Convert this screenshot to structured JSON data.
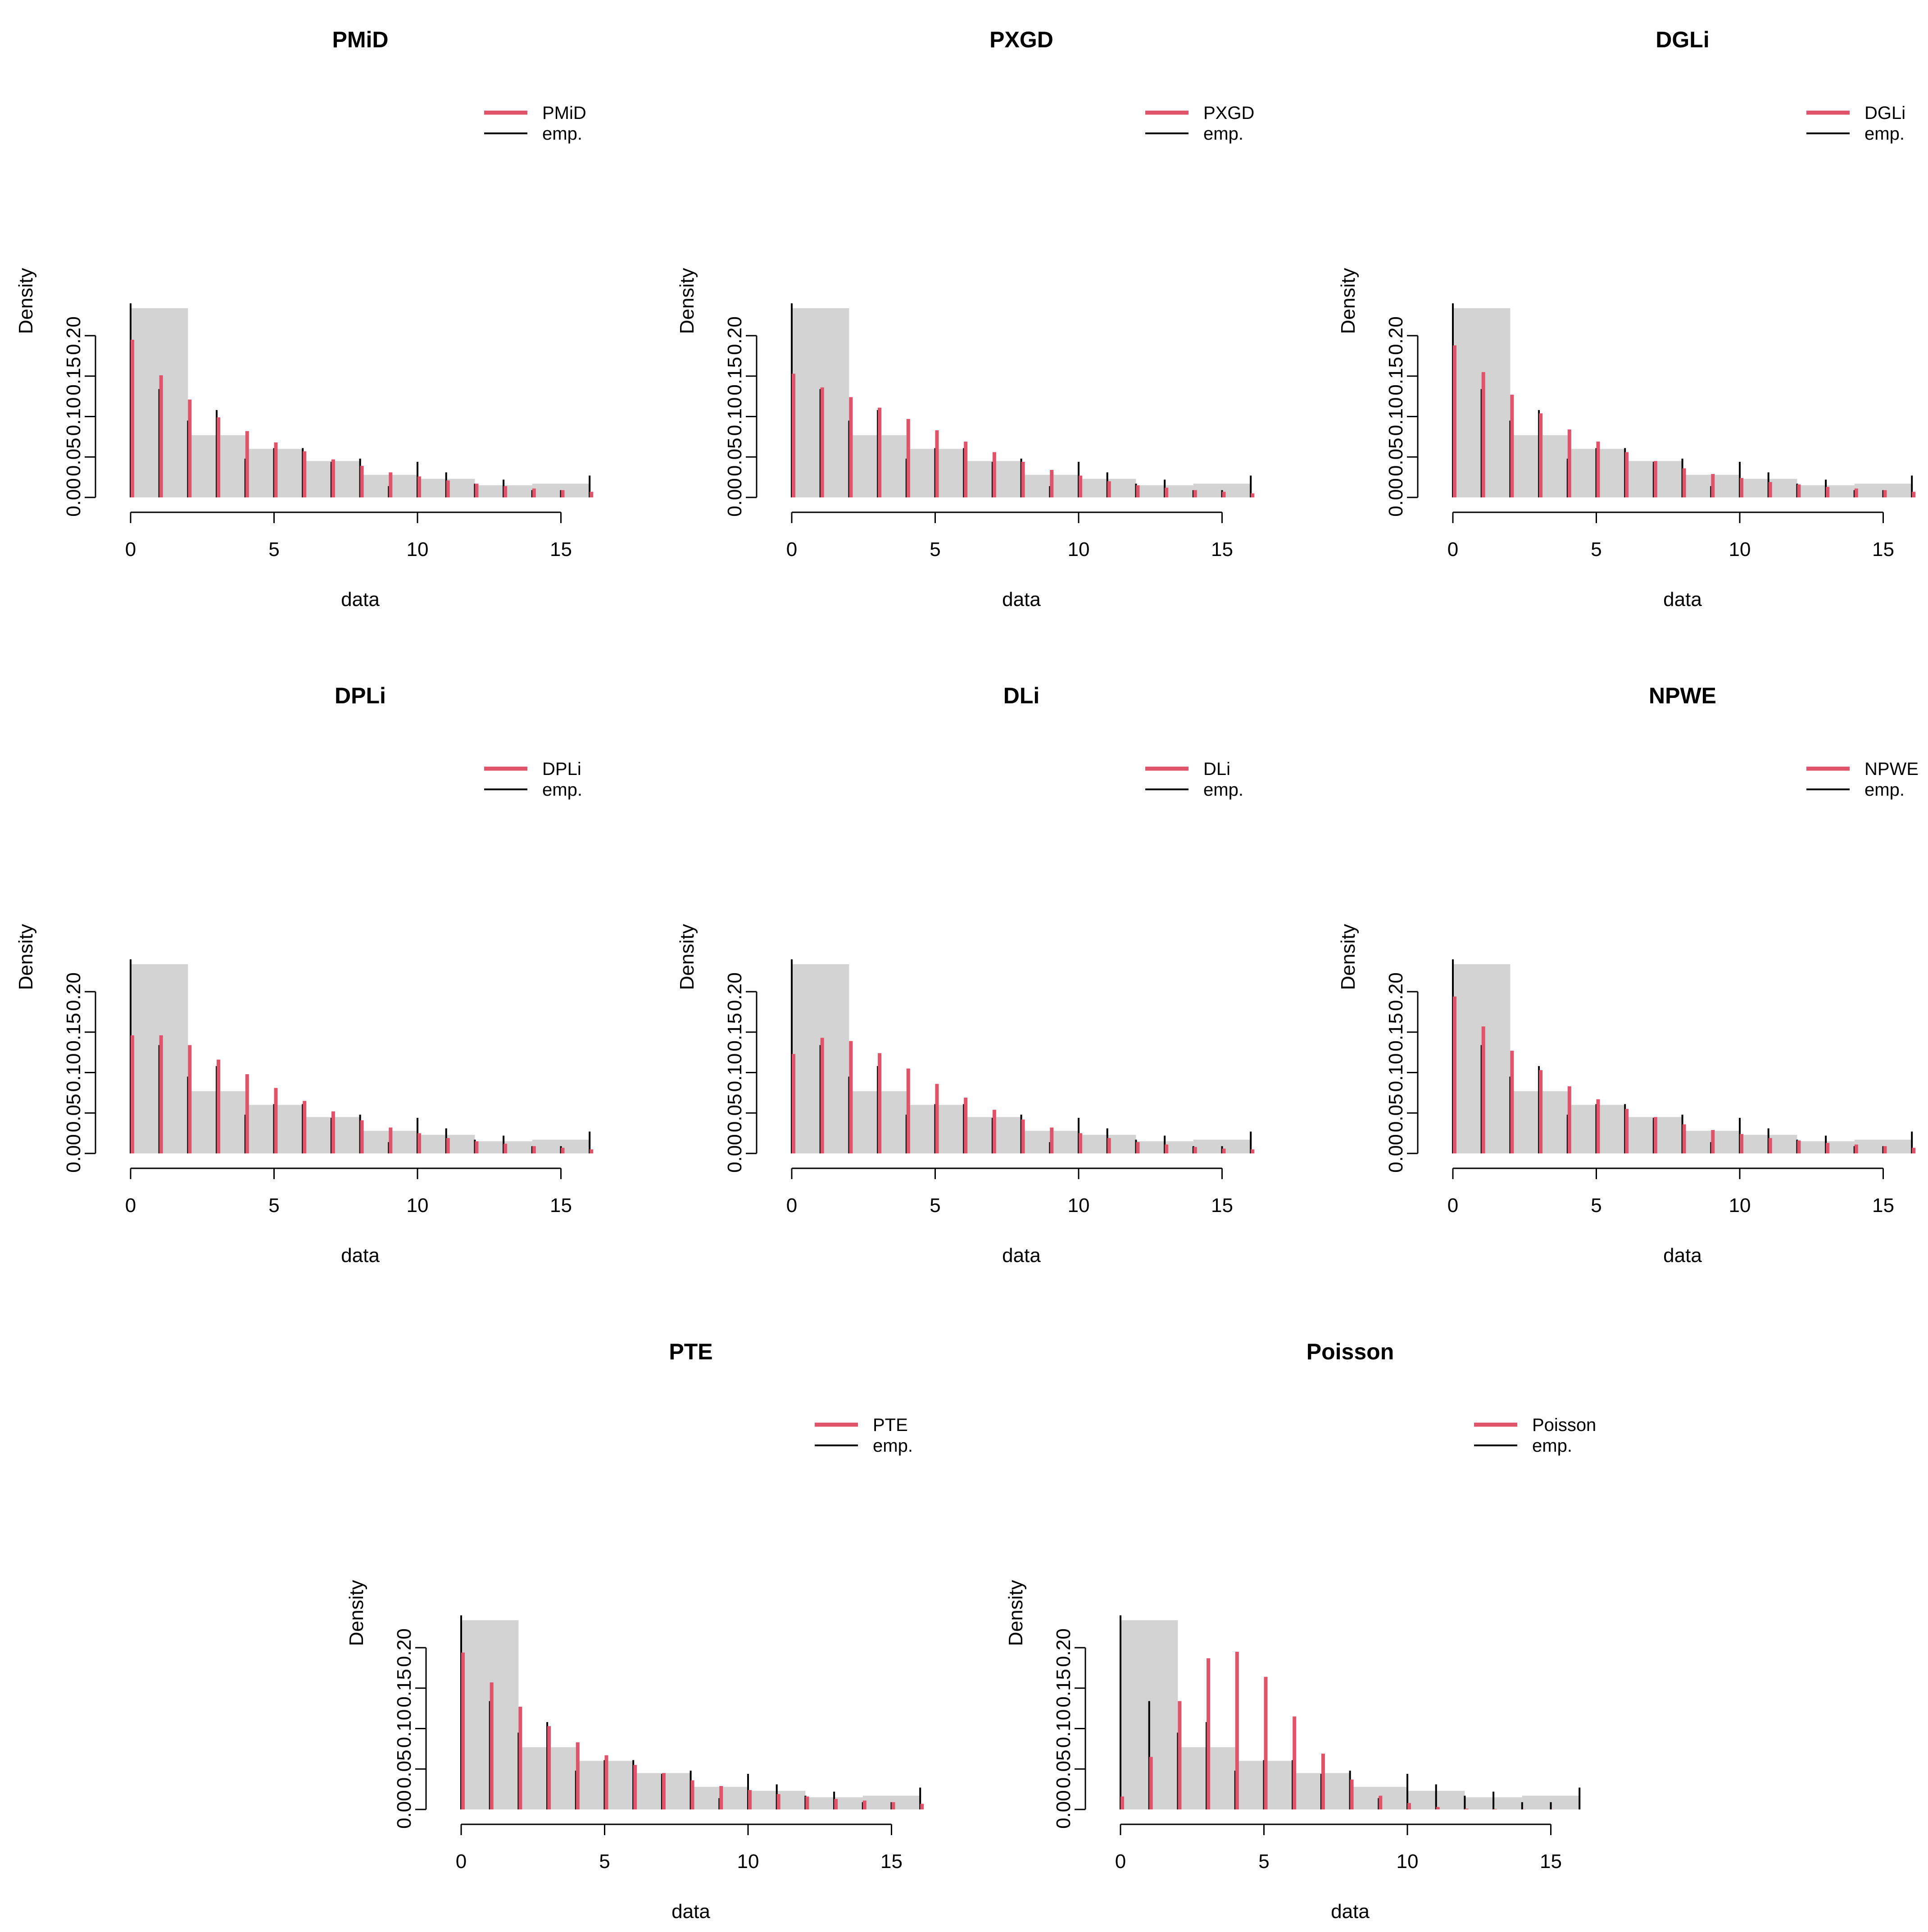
{
  "chart_data": [
    {
      "type": "bar",
      "title": "PMiD",
      "xlabel": "data",
      "ylabel": "Density",
      "xlim": [
        0,
        16
      ],
      "ylim": [
        0,
        0.24
      ],
      "xticks": [
        "0",
        "5",
        "10",
        "15"
      ],
      "yticks": [
        "0.00",
        "0.05",
        "0.10",
        "0.15",
        "0.20"
      ],
      "legend_position": "top-right",
      "histogram": {
        "bins": [
          [
            0,
            2
          ],
          [
            2,
            4
          ],
          [
            4,
            6
          ],
          [
            6,
            8
          ],
          [
            8,
            10
          ],
          [
            10,
            12
          ],
          [
            12,
            14
          ],
          [
            14,
            16
          ]
        ],
        "density": [
          0.234,
          0.077,
          0.06,
          0.045,
          0.028,
          0.023,
          0.015,
          0.017
        ]
      },
      "x": [
        0,
        1,
        2,
        3,
        4,
        5,
        6,
        7,
        8,
        9,
        10,
        11,
        12,
        13,
        14,
        15,
        16
      ],
      "series": [
        {
          "name": "PMiD",
          "color": "#DF536B",
          "values": [
            0.195,
            0.151,
            0.121,
            0.099,
            0.082,
            0.068,
            0.057,
            0.047,
            0.039,
            0.031,
            0.026,
            0.021,
            0.017,
            0.014,
            0.011,
            0.009,
            0.007
          ]
        },
        {
          "name": "emp.",
          "color": "#000000",
          "values": [
            0.24,
            0.134,
            0.095,
            0.108,
            0.048,
            0.061,
            0.061,
            0.044,
            0.048,
            0.014,
            0.044,
            0.031,
            0.017,
            0.022,
            0.009,
            0.009,
            0.027
          ]
        }
      ]
    },
    {
      "type": "bar",
      "title": "PXGD",
      "xlabel": "data",
      "ylabel": "Density",
      "xlim": [
        0,
        16
      ],
      "ylim": [
        0,
        0.24
      ],
      "xticks": [
        "0",
        "5",
        "10",
        "15"
      ],
      "yticks": [
        "0.00",
        "0.05",
        "0.10",
        "0.15",
        "0.20"
      ],
      "legend_position": "top-right",
      "histogram": {
        "bins": [
          [
            0,
            2
          ],
          [
            2,
            4
          ],
          [
            4,
            6
          ],
          [
            6,
            8
          ],
          [
            8,
            10
          ],
          [
            10,
            12
          ],
          [
            12,
            14
          ],
          [
            14,
            16
          ]
        ],
        "density": [
          0.234,
          0.077,
          0.06,
          0.045,
          0.028,
          0.023,
          0.015,
          0.017
        ]
      },
      "x": [
        0,
        1,
        2,
        3,
        4,
        5,
        6,
        7,
        8,
        9,
        10,
        11,
        12,
        13,
        14,
        15,
        16
      ],
      "series": [
        {
          "name": "PXGD",
          "color": "#DF536B",
          "values": [
            0.153,
            0.136,
            0.124,
            0.111,
            0.097,
            0.083,
            0.069,
            0.056,
            0.044,
            0.034,
            0.027,
            0.02,
            0.015,
            0.012,
            0.009,
            0.007,
            0.005
          ]
        },
        {
          "name": "emp.",
          "color": "#000000",
          "values": [
            0.24,
            0.134,
            0.095,
            0.108,
            0.048,
            0.061,
            0.061,
            0.044,
            0.048,
            0.014,
            0.044,
            0.031,
            0.017,
            0.022,
            0.009,
            0.009,
            0.027
          ]
        }
      ]
    },
    {
      "type": "bar",
      "title": "DGLi",
      "xlabel": "data",
      "ylabel": "Density",
      "xlim": [
        0,
        16
      ],
      "ylim": [
        0,
        0.24
      ],
      "xticks": [
        "0",
        "5",
        "10",
        "15"
      ],
      "yticks": [
        "0.00",
        "0.05",
        "0.10",
        "0.15",
        "0.20"
      ],
      "legend_position": "top-right",
      "histogram": {
        "bins": [
          [
            0,
            2
          ],
          [
            2,
            4
          ],
          [
            4,
            6
          ],
          [
            6,
            8
          ],
          [
            8,
            10
          ],
          [
            10,
            12
          ],
          [
            12,
            14
          ],
          [
            14,
            16
          ]
        ],
        "density": [
          0.234,
          0.077,
          0.06,
          0.045,
          0.028,
          0.023,
          0.015,
          0.017
        ]
      },
      "x": [
        0,
        1,
        2,
        3,
        4,
        5,
        6,
        7,
        8,
        9,
        10,
        11,
        12,
        13,
        14,
        15,
        16
      ],
      "series": [
        {
          "name": "DGLi",
          "color": "#DF536B",
          "values": [
            0.188,
            0.155,
            0.127,
            0.104,
            0.084,
            0.069,
            0.056,
            0.045,
            0.036,
            0.029,
            0.024,
            0.019,
            0.016,
            0.013,
            0.011,
            0.009,
            0.007
          ]
        },
        {
          "name": "emp.",
          "color": "#000000",
          "values": [
            0.24,
            0.134,
            0.095,
            0.108,
            0.048,
            0.061,
            0.061,
            0.044,
            0.048,
            0.014,
            0.044,
            0.031,
            0.017,
            0.022,
            0.009,
            0.009,
            0.027
          ]
        }
      ]
    },
    {
      "type": "bar",
      "title": "DPLi",
      "xlabel": "data",
      "ylabel": "Density",
      "xlim": [
        0,
        16
      ],
      "ylim": [
        0,
        0.24
      ],
      "xticks": [
        "0",
        "5",
        "10",
        "15"
      ],
      "yticks": [
        "0.00",
        "0.05",
        "0.10",
        "0.15",
        "0.20"
      ],
      "legend_position": "top-right",
      "histogram": {
        "bins": [
          [
            0,
            2
          ],
          [
            2,
            4
          ],
          [
            4,
            6
          ],
          [
            6,
            8
          ],
          [
            8,
            10
          ],
          [
            10,
            12
          ],
          [
            12,
            14
          ],
          [
            14,
            16
          ]
        ],
        "density": [
          0.234,
          0.077,
          0.06,
          0.045,
          0.028,
          0.023,
          0.015,
          0.017
        ]
      },
      "x": [
        0,
        1,
        2,
        3,
        4,
        5,
        6,
        7,
        8,
        9,
        10,
        11,
        12,
        13,
        14,
        15,
        16
      ],
      "series": [
        {
          "name": "DPLi",
          "color": "#DF536B",
          "values": [
            0.146,
            0.146,
            0.134,
            0.116,
            0.098,
            0.081,
            0.065,
            0.052,
            0.041,
            0.032,
            0.025,
            0.019,
            0.015,
            0.012,
            0.009,
            0.007,
            0.005
          ]
        },
        {
          "name": "emp.",
          "color": "#000000",
          "values": [
            0.24,
            0.134,
            0.095,
            0.108,
            0.048,
            0.061,
            0.061,
            0.044,
            0.048,
            0.014,
            0.044,
            0.031,
            0.017,
            0.022,
            0.009,
            0.009,
            0.027
          ]
        }
      ]
    },
    {
      "type": "bar",
      "title": "DLi",
      "xlabel": "data",
      "ylabel": "Density",
      "xlim": [
        0,
        16
      ],
      "ylim": [
        0,
        0.24
      ],
      "xticks": [
        "0",
        "5",
        "10",
        "15"
      ],
      "yticks": [
        "0.00",
        "0.05",
        "0.10",
        "0.15",
        "0.20"
      ],
      "legend_position": "top-right",
      "histogram": {
        "bins": [
          [
            0,
            2
          ],
          [
            2,
            4
          ],
          [
            4,
            6
          ],
          [
            6,
            8
          ],
          [
            8,
            10
          ],
          [
            10,
            12
          ],
          [
            12,
            14
          ],
          [
            14,
            16
          ]
        ],
        "density": [
          0.234,
          0.077,
          0.06,
          0.045,
          0.028,
          0.023,
          0.015,
          0.017
        ]
      },
      "x": [
        0,
        1,
        2,
        3,
        4,
        5,
        6,
        7,
        8,
        9,
        10,
        11,
        12,
        13,
        14,
        15,
        16
      ],
      "series": [
        {
          "name": "DLi",
          "color": "#DF536B",
          "values": [
            0.123,
            0.143,
            0.139,
            0.124,
            0.105,
            0.086,
            0.069,
            0.054,
            0.042,
            0.032,
            0.025,
            0.019,
            0.014,
            0.011,
            0.008,
            0.006,
            0.005
          ]
        },
        {
          "name": "emp.",
          "color": "#000000",
          "values": [
            0.24,
            0.134,
            0.095,
            0.108,
            0.048,
            0.061,
            0.061,
            0.044,
            0.048,
            0.014,
            0.044,
            0.031,
            0.017,
            0.022,
            0.009,
            0.009,
            0.027
          ]
        }
      ]
    },
    {
      "type": "bar",
      "title": "NPWE",
      "xlabel": "data",
      "ylabel": "Density",
      "xlim": [
        0,
        16
      ],
      "ylim": [
        0,
        0.24
      ],
      "xticks": [
        "0",
        "5",
        "10",
        "15"
      ],
      "yticks": [
        "0.00",
        "0.05",
        "0.10",
        "0.15",
        "0.20"
      ],
      "legend_position": "top-right",
      "histogram": {
        "bins": [
          [
            0,
            2
          ],
          [
            2,
            4
          ],
          [
            4,
            6
          ],
          [
            6,
            8
          ],
          [
            8,
            10
          ],
          [
            10,
            12
          ],
          [
            12,
            14
          ],
          [
            14,
            16
          ]
        ],
        "density": [
          0.234,
          0.077,
          0.06,
          0.045,
          0.028,
          0.023,
          0.015,
          0.017
        ]
      },
      "x": [
        0,
        1,
        2,
        3,
        4,
        5,
        6,
        7,
        8,
        9,
        10,
        11,
        12,
        13,
        14,
        15,
        16
      ],
      "series": [
        {
          "name": "NPWE",
          "color": "#DF536B",
          "values": [
            0.194,
            0.157,
            0.127,
            0.103,
            0.083,
            0.067,
            0.055,
            0.045,
            0.036,
            0.029,
            0.024,
            0.019,
            0.016,
            0.013,
            0.011,
            0.009,
            0.007
          ]
        },
        {
          "name": "emp.",
          "color": "#000000",
          "values": [
            0.24,
            0.134,
            0.095,
            0.108,
            0.048,
            0.061,
            0.061,
            0.044,
            0.048,
            0.014,
            0.044,
            0.031,
            0.017,
            0.022,
            0.009,
            0.009,
            0.027
          ]
        }
      ]
    },
    {
      "type": "bar",
      "title": "PTE",
      "xlabel": "data",
      "ylabel": "Density",
      "xlim": [
        0,
        16
      ],
      "ylim": [
        0,
        0.24
      ],
      "xticks": [
        "0",
        "5",
        "10",
        "15"
      ],
      "yticks": [
        "0.00",
        "0.05",
        "0.10",
        "0.15",
        "0.20"
      ],
      "legend_position": "top-right",
      "histogram": {
        "bins": [
          [
            0,
            2
          ],
          [
            2,
            4
          ],
          [
            4,
            6
          ],
          [
            6,
            8
          ],
          [
            8,
            10
          ],
          [
            10,
            12
          ],
          [
            12,
            14
          ],
          [
            14,
            16
          ]
        ],
        "density": [
          0.234,
          0.077,
          0.06,
          0.045,
          0.028,
          0.023,
          0.015,
          0.017
        ]
      },
      "x": [
        0,
        1,
        2,
        3,
        4,
        5,
        6,
        7,
        8,
        9,
        10,
        11,
        12,
        13,
        14,
        15,
        16
      ],
      "series": [
        {
          "name": "PTE",
          "color": "#DF536B",
          "values": [
            0.194,
            0.157,
            0.127,
            0.103,
            0.083,
            0.067,
            0.055,
            0.045,
            0.036,
            0.029,
            0.024,
            0.019,
            0.016,
            0.013,
            0.011,
            0.009,
            0.007
          ]
        },
        {
          "name": "emp.",
          "color": "#000000",
          "values": [
            0.24,
            0.134,
            0.095,
            0.108,
            0.048,
            0.061,
            0.061,
            0.044,
            0.048,
            0.014,
            0.044,
            0.031,
            0.017,
            0.022,
            0.009,
            0.009,
            0.027
          ]
        }
      ]
    },
    {
      "type": "bar",
      "title": "Poisson",
      "xlabel": "data",
      "ylabel": "Density",
      "xlim": [
        0,
        16
      ],
      "ylim": [
        0,
        0.24
      ],
      "xticks": [
        "0",
        "5",
        "10",
        "15"
      ],
      "yticks": [
        "0.00",
        "0.05",
        "0.10",
        "0.15",
        "0.20"
      ],
      "legend_position": "top-right",
      "histogram": {
        "bins": [
          [
            0,
            2
          ],
          [
            2,
            4
          ],
          [
            4,
            6
          ],
          [
            6,
            8
          ],
          [
            8,
            10
          ],
          [
            10,
            12
          ],
          [
            12,
            14
          ],
          [
            14,
            16
          ]
        ],
        "density": [
          0.234,
          0.077,
          0.06,
          0.045,
          0.028,
          0.023,
          0.015,
          0.017
        ]
      },
      "x": [
        0,
        1,
        2,
        3,
        4,
        5,
        6,
        7,
        8,
        9,
        10,
        11,
        12,
        13,
        14,
        15,
        16
      ],
      "series": [
        {
          "name": "Poisson",
          "color": "#DF536B",
          "values": [
            0.016,
            0.065,
            0.134,
            0.187,
            0.195,
            0.164,
            0.115,
            0.069,
            0.037,
            0.017,
            0.008,
            0.003,
            0.001,
            0.0005,
            0.0002,
            0.0001,
            0.0
          ]
        },
        {
          "name": "emp.",
          "color": "#000000",
          "values": [
            0.24,
            0.134,
            0.095,
            0.108,
            0.048,
            0.061,
            0.061,
            0.044,
            0.048,
            0.014,
            0.044,
            0.031,
            0.017,
            0.022,
            0.009,
            0.009,
            0.027
          ]
        }
      ]
    }
  ],
  "colors": {
    "histogram_fill": "#D3D3D3",
    "fit_series": "#DF536B",
    "empirical_series": "#000000",
    "axis": "#000000"
  }
}
